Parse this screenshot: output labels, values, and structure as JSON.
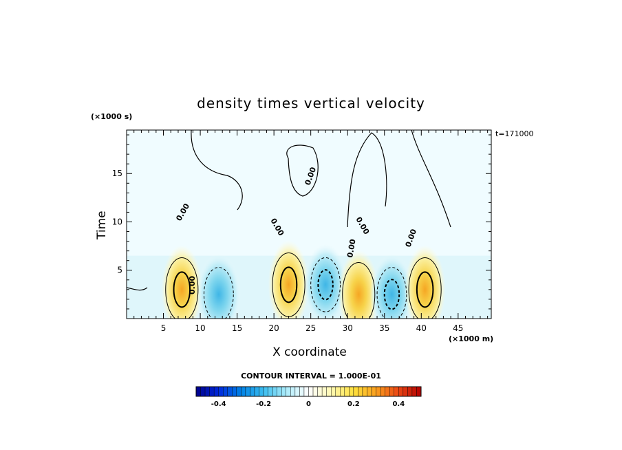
{
  "chart_data": {
    "type": "heatmap",
    "title": "density times vertical velocity",
    "xlabel": "X coordinate",
    "ylabel": "Time",
    "x_unit": "(×1000 m)",
    "y_unit": "(×1000 s)",
    "annotation": "t=171000",
    "contour_interval_text": "CONTOUR INTERVAL = 1.000E-01",
    "xlim": [
      0,
      49.5
    ],
    "ylim": [
      0,
      19.5
    ],
    "x_ticks": [
      5,
      10,
      15,
      20,
      25,
      30,
      35,
      40,
      45
    ],
    "y_ticks": [
      5,
      10,
      15
    ],
    "colorbar": {
      "range": [
        -0.5,
        0.5
      ],
      "ticks": [
        -0.4,
        -0.2,
        0,
        0.2,
        0.4
      ],
      "tick_labels": [
        "-0.4",
        "-0.2",
        "0",
        "0.2",
        "0.4"
      ],
      "low_color": "#00008b",
      "mid_color": "#ffffff",
      "high_color": "#b20000"
    },
    "cells": [
      {
        "x": 7.5,
        "y": 3.0,
        "value": 0.35,
        "sign": "positive"
      },
      {
        "x": 12.5,
        "y": 2.5,
        "value": -0.15,
        "sign": "negative"
      },
      {
        "x": 22.0,
        "y": 3.5,
        "value": 0.3,
        "sign": "positive"
      },
      {
        "x": 27.0,
        "y": 3.5,
        "value": -0.2,
        "sign": "negative"
      },
      {
        "x": 31.5,
        "y": 2.5,
        "value": 0.15,
        "sign": "positive"
      },
      {
        "x": 36.0,
        "y": 2.5,
        "value": -0.25,
        "sign": "negative"
      },
      {
        "x": 40.5,
        "y": 3.0,
        "value": 0.25,
        "sign": "positive"
      }
    ],
    "contour_labels": [
      "0.00"
    ],
    "grid": false
  }
}
